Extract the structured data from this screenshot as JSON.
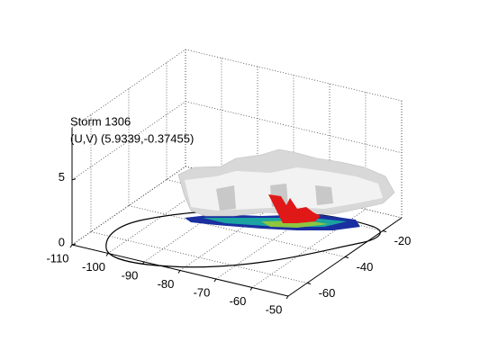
{
  "chart_data": {
    "type": "surface3d",
    "title": [
      "Storm 1306",
      "(U,V) (5.9339,-0.37455)"
    ],
    "xlim": [
      -110,
      -50
    ],
    "xticks": [
      -110,
      -100,
      -90,
      -80,
      -70,
      -60,
      -50
    ],
    "ylim": [
      -70,
      -10
    ],
    "yticks": [
      -60,
      -40,
      -20
    ],
    "zlim": [
      0,
      9
    ],
    "zticks": [
      0,
      5
    ],
    "grid": true
  }
}
